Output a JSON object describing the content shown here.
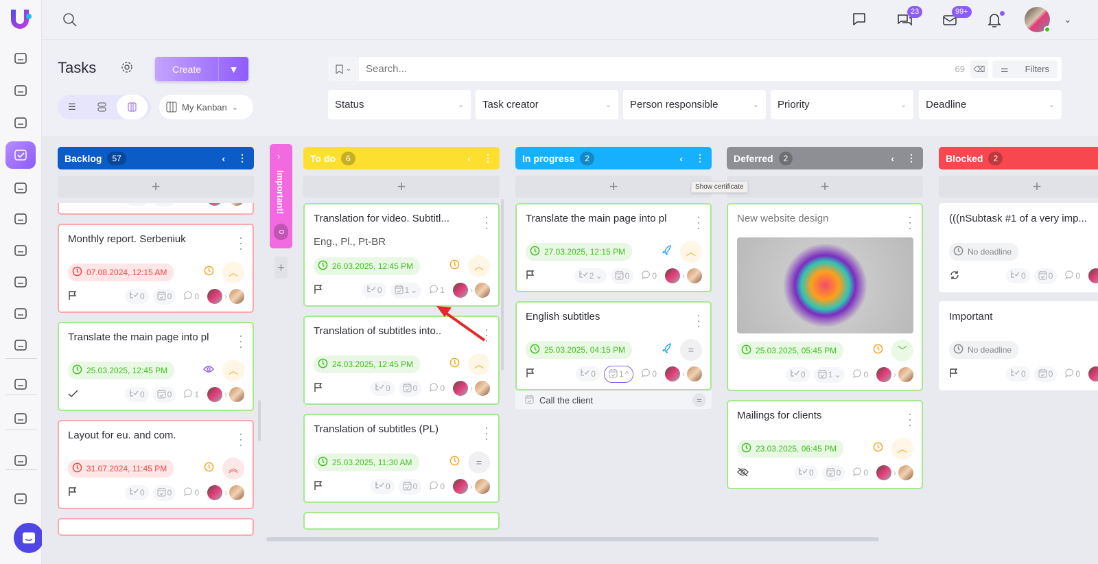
{
  "app": {
    "logo_letter": "U"
  },
  "sidebar": {
    "items": [
      {
        "icon": "home-icon"
      },
      {
        "icon": "newspaper-icon"
      },
      {
        "icon": "contact-icon"
      },
      {
        "icon": "tasks-icon",
        "active": true
      },
      {
        "icon": "users-icon"
      },
      {
        "icon": "calendar-icon"
      },
      {
        "icon": "database-icon"
      },
      {
        "icon": "lightning-icon"
      },
      {
        "icon": "scan-icon"
      },
      {
        "icon": "analytics-icon"
      },
      {
        "icon": "store-icon"
      },
      {
        "icon": "settings-icon"
      },
      {
        "icon": "wallet-icon"
      },
      {
        "icon": "help-icon"
      }
    ]
  },
  "topbar": {
    "messages_badge": "23",
    "mail_badge": "99+"
  },
  "page": {
    "title": "Tasks",
    "create_label": "Create",
    "view_select": "My Kanban",
    "search_placeholder": "Search...",
    "result_count": "69",
    "filters_label": "Filters",
    "filters": [
      "Status",
      "Task creator",
      "Person responsible",
      "Priority",
      "Deadline"
    ]
  },
  "tooltip": "Show certificate",
  "important_column": {
    "label": "Important!",
    "count": "0",
    "color": "#f36ae0"
  },
  "columns": [
    {
      "name": "Backlog",
      "count": "57",
      "color": "#0b5cc6",
      "cards": [
        {
          "title": "",
          "partial": "top",
          "border": "red",
          "date": "",
          "footer_icon": "flag",
          "subtasks": "0",
          "checklists": "0",
          "comments": "0"
        },
        {
          "title": "Monthly report. Serbeniuk",
          "border": "red",
          "date": "07.08.2024, 12:15 AM",
          "date_status": "overdue",
          "status_icon": "clock",
          "priority": "high",
          "footer_icon": "flag",
          "subtasks": "0",
          "checklists": "0",
          "comments": "0"
        },
        {
          "title": "Translate the main page into pl",
          "border": "green",
          "date": "25.03.2025, 12:45 PM",
          "date_status": "ok",
          "status_icon": "eye",
          "priority": "high",
          "footer_icon": "check",
          "subtasks": "0",
          "checklists": "0",
          "comments": "1"
        },
        {
          "title": "Layout for eu. and com.",
          "border": "red",
          "date": "31.07.2024, 11:45 PM",
          "date_status": "overdue",
          "status_icon": "clock",
          "priority": "critical",
          "footer_icon": "flag",
          "subtasks": "0",
          "checklists": "0",
          "comments": "0"
        },
        {
          "title": "",
          "partial": "bottom",
          "border": "red"
        }
      ]
    },
    {
      "name": "To do",
      "count": "6",
      "color": "#fde02f",
      "cards": [
        {
          "title": "Translation for video. Subtitl...",
          "subtitle": "Eng., Pl., Pt-BR",
          "border": "green",
          "date": "26.03.2025, 12:45 PM",
          "date_status": "ok",
          "status_icon": "clock",
          "priority": "high",
          "footer_icon": "flag",
          "subtasks": "0",
          "checklists": "1",
          "checklists_toggle": "down",
          "comments": "1"
        },
        {
          "title": "Translation of subtitles into..",
          "border": "green",
          "date": "24.03.2025, 12:45 PM",
          "date_status": "ok",
          "status_icon": "clock",
          "priority": "high",
          "footer_icon": "flag",
          "subtasks": "0",
          "checklists": "0",
          "comments": "0"
        },
        {
          "title": "Translation of subtitles (PL)",
          "border": "green",
          "date": "25.03.2025, 11:30 AM",
          "date_status": "ok",
          "status_icon": "clock",
          "priority": "medium",
          "footer_icon": "flag",
          "subtasks": "0",
          "checklists": "0",
          "comments": "0"
        },
        {
          "title": "",
          "partial": "bottom",
          "border": "green"
        }
      ]
    },
    {
      "name": "In progress",
      "count": "2",
      "color": "#17b0ff",
      "cards": [
        {
          "title": "Translate the main page into pl",
          "border": "green",
          "date": "27.03.2025, 12:15 PM",
          "date_status": "ok",
          "status_icon": "rocket",
          "priority": "high",
          "footer_icon": "flag",
          "subtasks": "2",
          "subtasks_toggle": "down",
          "checklists": "0",
          "comments": "0"
        },
        {
          "title": "English subtitles",
          "border": "green",
          "date": "25.03.2025, 04:15 PM",
          "date_status": "ok",
          "status_icon": "rocket",
          "priority": "medium",
          "footer_icon": "flag",
          "subtasks": "0",
          "checklists": "1",
          "checklists_toggle": "up",
          "checklists_active": true,
          "comments": "0",
          "checklist_item": {
            "label": "Call the client",
            "priority": "medium"
          }
        }
      ]
    },
    {
      "name": "Deferred",
      "count": "2",
      "color": "#8e8f94",
      "cards": [
        {
          "title": "New website design",
          "title_muted": true,
          "image": true,
          "border": "green",
          "date": "25.03.2025, 05:45 PM",
          "date_status": "ok",
          "status_icon": "clock",
          "priority": "low",
          "footer_icon": "none",
          "subtasks": "0",
          "checklists": "1",
          "checklists_toggle": "down",
          "comments": "0"
        },
        {
          "title": "Mailings for clients",
          "border": "green",
          "date": "23.03.2025, 06:45 PM",
          "date_status": "ok",
          "status_icon": "clock",
          "priority": "high",
          "footer_icon": "eye-off",
          "subtasks": "0",
          "checklists": "0",
          "comments": "0"
        }
      ]
    },
    {
      "name": "Blocked",
      "count": "2",
      "color": "#f7474f",
      "cards": [
        {
          "title": "(((nSubtask #1 of a very imp...",
          "border": "plain",
          "date": "No deadline",
          "date_status": "none",
          "status_icon": "check",
          "footer_icon": "repeat",
          "subtasks": "0",
          "checklists": "0",
          "comments": "0"
        },
        {
          "title": "Important",
          "border": "plain",
          "date": "No deadline",
          "date_status": "none",
          "status_icon": "rocket",
          "footer_icon": "flag",
          "subtasks": "0",
          "checklists": "0",
          "comments": "0"
        }
      ]
    }
  ],
  "colors": {
    "accent": "#8b5cf6",
    "ok": "#3fbf1f",
    "overdue": "#f04646",
    "warning": "#f5a623"
  }
}
